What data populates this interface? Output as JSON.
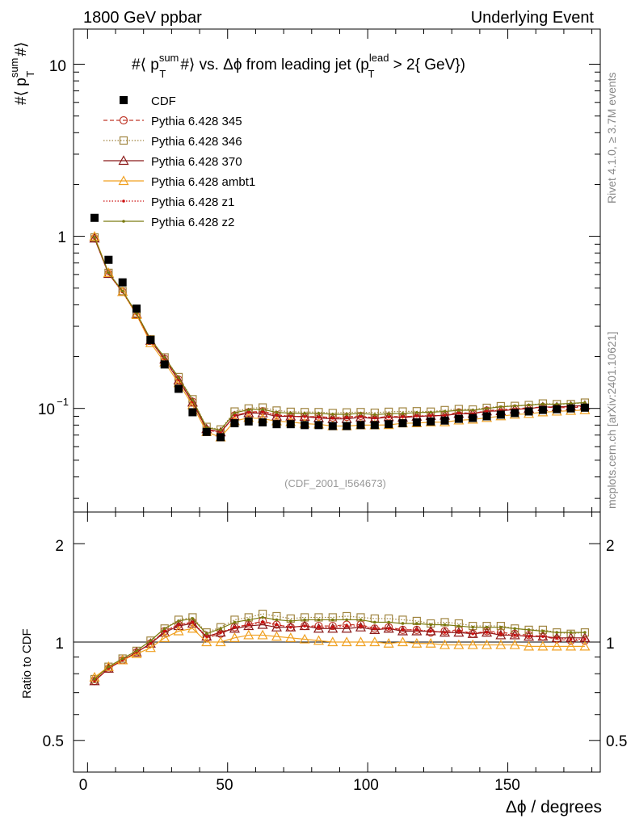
{
  "header": {
    "left": "1800 GeV ppbar",
    "right": "Underlying Event"
  },
  "side_text": {
    "rivet": "Rivet 4.1.0, ≥ 3.7M events",
    "mcplots": "mcplots.cern.ch [arXiv:2401.10621]"
  },
  "watermark": "(CDF_2001_I564673)",
  "chart_data": [
    {
      "type": "line",
      "panel": "main",
      "title": "#⟨ p_T^sum #⟩ vs. Δϕ from leading jet  (p_T^lead > 2{ GeV})",
      "title_parts": {
        "prefix": "#⟨ p",
        "sup_sum": "sum",
        "sub_T": "T",
        "mid": "#⟩ vs. Δϕ from leading jet  (p",
        "sup_lead": "lead",
        "sub_T2": "T",
        "suffix": " > 2{ GeV})"
      },
      "ylabel": "#⟨ p_T^sum #⟩",
      "ylabel_parts": {
        "prefix": "#⟨ p",
        "sup": "sum",
        "sub": "T",
        "suffix": "#⟩"
      },
      "yscale": "log",
      "ylim": [
        0.025,
        16
      ],
      "xlim": [
        -5,
        183
      ],
      "y_tick_labels": [
        "1",
        "10"
      ],
      "y_tick_label_1e-1": {
        "base": "10",
        "exp": "−1"
      },
      "x": [
        2.5,
        7.5,
        12.5,
        17.5,
        22.5,
        27.5,
        32.5,
        37.5,
        42.5,
        47.5,
        52.5,
        57.5,
        62.5,
        67.5,
        72.5,
        77.5,
        82.5,
        87.5,
        92.5,
        97.5,
        102.5,
        107.5,
        112.5,
        117.5,
        122.5,
        127.5,
        132.5,
        137.5,
        142.5,
        147.5,
        152.5,
        157.5,
        162.5,
        167.5,
        172.5,
        177.5
      ],
      "data": {
        "name": "CDF",
        "values": [
          1.28,
          0.73,
          0.54,
          0.38,
          0.25,
          0.18,
          0.13,
          0.095,
          0.073,
          0.068,
          0.082,
          0.084,
          0.083,
          0.081,
          0.081,
          0.08,
          0.08,
          0.079,
          0.079,
          0.08,
          0.08,
          0.081,
          0.082,
          0.083,
          0.084,
          0.085,
          0.087,
          0.088,
          0.09,
          0.092,
          0.094,
          0.096,
          0.098,
          0.099,
          0.1,
          0.101
        ]
      },
      "legend": [
        {
          "name": "CDF",
          "color": "#000000",
          "marker": "square-filled",
          "line": "none"
        },
        {
          "name": "Pythia 6.428 345",
          "color": "#c0392b",
          "marker": "circle-open",
          "line": "dashed"
        },
        {
          "name": "Pythia 6.428 346",
          "color": "#a08540",
          "marker": "square-open",
          "line": "dotted"
        },
        {
          "name": "Pythia 6.428 370",
          "color": "#8b1a1a",
          "marker": "triangle-open",
          "line": "solid"
        },
        {
          "name": "Pythia 6.428 ambt1",
          "color": "#f0a020",
          "marker": "triangle-open",
          "line": "solid"
        },
        {
          "name": "Pythia 6.428 z1",
          "color": "#cc1010",
          "marker": "dot",
          "line": "dotted"
        },
        {
          "name": "Pythia 6.428 z2",
          "color": "#7a7a10",
          "marker": "dot",
          "line": "solid"
        }
      ],
      "series_ratio_to_cdf": [
        {
          "name": "Pythia 6.428 345",
          "ratio": [
            0.76,
            0.83,
            0.88,
            0.93,
            0.99,
            1.08,
            1.13,
            1.15,
            1.03,
            1.06,
            1.11,
            1.13,
            1.16,
            1.13,
            1.11,
            1.12,
            1.12,
            1.12,
            1.13,
            1.13,
            1.1,
            1.11,
            1.09,
            1.09,
            1.07,
            1.08,
            1.09,
            1.06,
            1.08,
            1.07,
            1.06,
            1.05,
            1.04,
            1.02,
            1.01,
            1.01
          ]
        },
        {
          "name": "Pythia 6.428 346",
          "ratio": [
            0.77,
            0.84,
            0.89,
            0.94,
            1.01,
            1.1,
            1.17,
            1.19,
            1.07,
            1.11,
            1.17,
            1.19,
            1.22,
            1.2,
            1.18,
            1.19,
            1.19,
            1.19,
            1.2,
            1.19,
            1.18,
            1.18,
            1.17,
            1.16,
            1.14,
            1.15,
            1.14,
            1.12,
            1.12,
            1.12,
            1.1,
            1.09,
            1.09,
            1.07,
            1.06,
            1.07
          ]
        },
        {
          "name": "Pythia 6.428 370",
          "ratio": [
            0.76,
            0.83,
            0.88,
            0.93,
            0.99,
            1.07,
            1.12,
            1.14,
            1.04,
            1.07,
            1.1,
            1.12,
            1.13,
            1.11,
            1.11,
            1.12,
            1.1,
            1.1,
            1.1,
            1.11,
            1.09,
            1.1,
            1.08,
            1.08,
            1.08,
            1.07,
            1.07,
            1.06,
            1.07,
            1.05,
            1.05,
            1.04,
            1.04,
            1.03,
            1.03,
            1.03
          ]
        },
        {
          "name": "Pythia 6.428 ambt1",
          "ratio": [
            0.78,
            0.84,
            0.88,
            0.92,
            0.96,
            1.03,
            1.08,
            1.1,
            1.0,
            1.0,
            1.03,
            1.05,
            1.05,
            1.04,
            1.03,
            1.02,
            1.01,
            1.0,
            1.0,
            1.0,
            1.0,
            0.99,
            1.0,
            0.99,
            0.99,
            0.98,
            0.98,
            0.98,
            0.98,
            0.98,
            0.98,
            0.97,
            0.97,
            0.97,
            0.97,
            0.97
          ]
        },
        {
          "name": "Pythia 6.428 z1",
          "ratio": [
            0.76,
            0.83,
            0.88,
            0.93,
            0.99,
            1.08,
            1.13,
            1.15,
            1.04,
            1.07,
            1.11,
            1.13,
            1.15,
            1.13,
            1.11,
            1.12,
            1.11,
            1.11,
            1.12,
            1.12,
            1.1,
            1.1,
            1.09,
            1.09,
            1.08,
            1.07,
            1.08,
            1.06,
            1.07,
            1.06,
            1.05,
            1.04,
            1.04,
            1.03,
            1.02,
            1.02
          ]
        },
        {
          "name": "Pythia 6.428 z2",
          "ratio": [
            0.77,
            0.84,
            0.89,
            0.94,
            1.01,
            1.1,
            1.16,
            1.18,
            1.06,
            1.1,
            1.15,
            1.17,
            1.19,
            1.17,
            1.16,
            1.17,
            1.17,
            1.17,
            1.17,
            1.17,
            1.15,
            1.15,
            1.14,
            1.14,
            1.13,
            1.13,
            1.12,
            1.11,
            1.11,
            1.11,
            1.1,
            1.09,
            1.08,
            1.07,
            1.07,
            1.07
          ]
        }
      ]
    },
    {
      "type": "line",
      "panel": "ratio",
      "ylabel": "Ratio to CDF",
      "xlabel": "Δϕ / degrees",
      "yscale": "log",
      "ylim": [
        0.4,
        2.5
      ],
      "xlim": [
        -5,
        183
      ],
      "reference_line": 1,
      "y_tick_labels": [
        "0.5",
        "1",
        "2"
      ],
      "x_tick_labels": [
        "0",
        "50",
        "100",
        "150"
      ]
    }
  ]
}
